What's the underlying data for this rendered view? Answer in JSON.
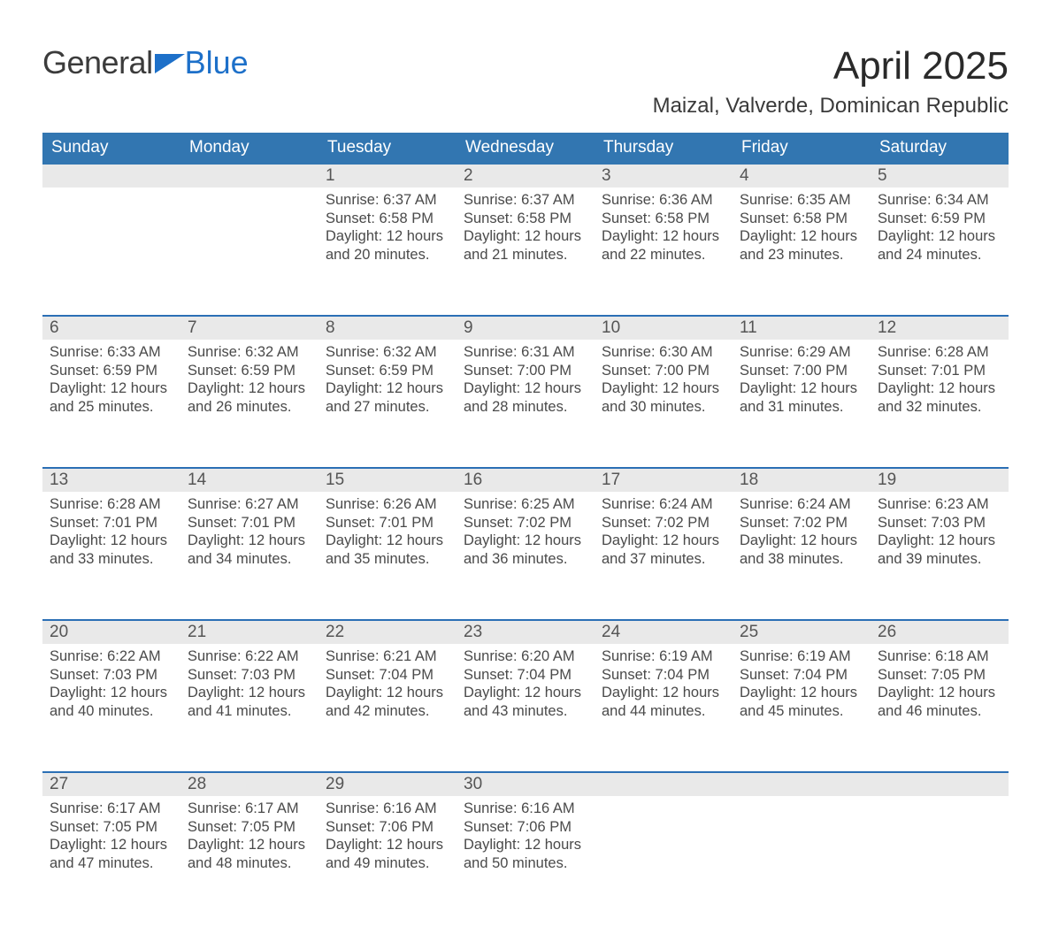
{
  "brand": {
    "part1": "General",
    "part2": "Blue"
  },
  "title": "April 2025",
  "subtitle": "Maizal, Valverde, Dominican Republic",
  "colors": {
    "header_bg": "#3276b1",
    "header_fg": "#ffffff",
    "accent": "#1d70c9",
    "band_bg": "#e9e9e9",
    "text": "#333333",
    "week_border": "#2b6fb5",
    "page_bg": "#ffffff"
  },
  "typography": {
    "title_fontsize_pt": 33,
    "subtitle_fontsize_pt": 18,
    "header_fontsize_pt": 14,
    "cell_fontsize_pt": 12,
    "font_family": "Segoe UI"
  },
  "calendar": {
    "type": "table",
    "columns": [
      "Sunday",
      "Monday",
      "Tuesday",
      "Wednesday",
      "Thursday",
      "Friday",
      "Saturday"
    ],
    "weeks": [
      [
        null,
        null,
        {
          "n": "1",
          "sunrise": "6:37 AM",
          "sunset": "6:58 PM",
          "dl1": "Daylight: 12 hours",
          "dl2": "and 20 minutes."
        },
        {
          "n": "2",
          "sunrise": "6:37 AM",
          "sunset": "6:58 PM",
          "dl1": "Daylight: 12 hours",
          "dl2": "and 21 minutes."
        },
        {
          "n": "3",
          "sunrise": "6:36 AM",
          "sunset": "6:58 PM",
          "dl1": "Daylight: 12 hours",
          "dl2": "and 22 minutes."
        },
        {
          "n": "4",
          "sunrise": "6:35 AM",
          "sunset": "6:58 PM",
          "dl1": "Daylight: 12 hours",
          "dl2": "and 23 minutes."
        },
        {
          "n": "5",
          "sunrise": "6:34 AM",
          "sunset": "6:59 PM",
          "dl1": "Daylight: 12 hours",
          "dl2": "and 24 minutes."
        }
      ],
      [
        {
          "n": "6",
          "sunrise": "6:33 AM",
          "sunset": "6:59 PM",
          "dl1": "Daylight: 12 hours",
          "dl2": "and 25 minutes."
        },
        {
          "n": "7",
          "sunrise": "6:32 AM",
          "sunset": "6:59 PM",
          "dl1": "Daylight: 12 hours",
          "dl2": "and 26 minutes."
        },
        {
          "n": "8",
          "sunrise": "6:32 AM",
          "sunset": "6:59 PM",
          "dl1": "Daylight: 12 hours",
          "dl2": "and 27 minutes."
        },
        {
          "n": "9",
          "sunrise": "6:31 AM",
          "sunset": "7:00 PM",
          "dl1": "Daylight: 12 hours",
          "dl2": "and 28 minutes."
        },
        {
          "n": "10",
          "sunrise": "6:30 AM",
          "sunset": "7:00 PM",
          "dl1": "Daylight: 12 hours",
          "dl2": "and 30 minutes."
        },
        {
          "n": "11",
          "sunrise": "6:29 AM",
          "sunset": "7:00 PM",
          "dl1": "Daylight: 12 hours",
          "dl2": "and 31 minutes."
        },
        {
          "n": "12",
          "sunrise": "6:28 AM",
          "sunset": "7:01 PM",
          "dl1": "Daylight: 12 hours",
          "dl2": "and 32 minutes."
        }
      ],
      [
        {
          "n": "13",
          "sunrise": "6:28 AM",
          "sunset": "7:01 PM",
          "dl1": "Daylight: 12 hours",
          "dl2": "and 33 minutes."
        },
        {
          "n": "14",
          "sunrise": "6:27 AM",
          "sunset": "7:01 PM",
          "dl1": "Daylight: 12 hours",
          "dl2": "and 34 minutes."
        },
        {
          "n": "15",
          "sunrise": "6:26 AM",
          "sunset": "7:01 PM",
          "dl1": "Daylight: 12 hours",
          "dl2": "and 35 minutes."
        },
        {
          "n": "16",
          "sunrise": "6:25 AM",
          "sunset": "7:02 PM",
          "dl1": "Daylight: 12 hours",
          "dl2": "and 36 minutes."
        },
        {
          "n": "17",
          "sunrise": "6:24 AM",
          "sunset": "7:02 PM",
          "dl1": "Daylight: 12 hours",
          "dl2": "and 37 minutes."
        },
        {
          "n": "18",
          "sunrise": "6:24 AM",
          "sunset": "7:02 PM",
          "dl1": "Daylight: 12 hours",
          "dl2": "and 38 minutes."
        },
        {
          "n": "19",
          "sunrise": "6:23 AM",
          "sunset": "7:03 PM",
          "dl1": "Daylight: 12 hours",
          "dl2": "and 39 minutes."
        }
      ],
      [
        {
          "n": "20",
          "sunrise": "6:22 AM",
          "sunset": "7:03 PM",
          "dl1": "Daylight: 12 hours",
          "dl2": "and 40 minutes."
        },
        {
          "n": "21",
          "sunrise": "6:22 AM",
          "sunset": "7:03 PM",
          "dl1": "Daylight: 12 hours",
          "dl2": "and 41 minutes."
        },
        {
          "n": "22",
          "sunrise": "6:21 AM",
          "sunset": "7:04 PM",
          "dl1": "Daylight: 12 hours",
          "dl2": "and 42 minutes."
        },
        {
          "n": "23",
          "sunrise": "6:20 AM",
          "sunset": "7:04 PM",
          "dl1": "Daylight: 12 hours",
          "dl2": "and 43 minutes."
        },
        {
          "n": "24",
          "sunrise": "6:19 AM",
          "sunset": "7:04 PM",
          "dl1": "Daylight: 12 hours",
          "dl2": "and 44 minutes."
        },
        {
          "n": "25",
          "sunrise": "6:19 AM",
          "sunset": "7:04 PM",
          "dl1": "Daylight: 12 hours",
          "dl2": "and 45 minutes."
        },
        {
          "n": "26",
          "sunrise": "6:18 AM",
          "sunset": "7:05 PM",
          "dl1": "Daylight: 12 hours",
          "dl2": "and 46 minutes."
        }
      ],
      [
        {
          "n": "27",
          "sunrise": "6:17 AM",
          "sunset": "7:05 PM",
          "dl1": "Daylight: 12 hours",
          "dl2": "and 47 minutes."
        },
        {
          "n": "28",
          "sunrise": "6:17 AM",
          "sunset": "7:05 PM",
          "dl1": "Daylight: 12 hours",
          "dl2": "and 48 minutes."
        },
        {
          "n": "29",
          "sunrise": "6:16 AM",
          "sunset": "7:06 PM",
          "dl1": "Daylight: 12 hours",
          "dl2": "and 49 minutes."
        },
        {
          "n": "30",
          "sunrise": "6:16 AM",
          "sunset": "7:06 PM",
          "dl1": "Daylight: 12 hours",
          "dl2": "and 50 minutes."
        },
        null,
        null,
        null
      ]
    ],
    "labels": {
      "sunrise_prefix": "Sunrise: ",
      "sunset_prefix": "Sunset: "
    }
  }
}
